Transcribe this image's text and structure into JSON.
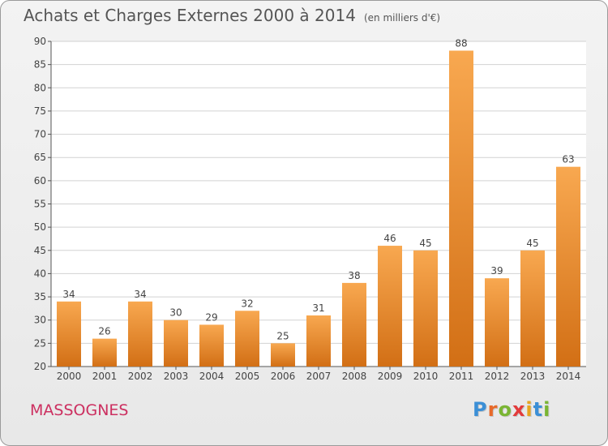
{
  "title": "Achats et Charges Externes 2000 à 2014",
  "subtitle": "(en milliers d'€)",
  "commune": "MASSOGNES",
  "logo": {
    "text": "Proxiti",
    "letters": [
      {
        "ch": "P",
        "color": "#3b8fd6"
      },
      {
        "ch": "r",
        "color": "#e86a2a"
      },
      {
        "ch": "o",
        "color": "#7ab533"
      },
      {
        "ch": "x",
        "color": "#e23b3b"
      },
      {
        "ch": "i",
        "color": "#e8a51e"
      },
      {
        "ch": "t",
        "color": "#3b8fd6"
      },
      {
        "ch": "i",
        "color": "#7ab533"
      }
    ]
  },
  "colors": {
    "bar_top": "#f8a850",
    "bar_bottom": "#d26f15",
    "grid": "#d2d2d2",
    "axis": "#555555",
    "text": "#444444"
  },
  "chart_data": {
    "type": "bar",
    "categories": [
      "2000",
      "2001",
      "2002",
      "2003",
      "2004",
      "2005",
      "2006",
      "2007",
      "2008",
      "2009",
      "2010",
      "2011",
      "2012",
      "2013",
      "2014"
    ],
    "values": [
      34,
      26,
      34,
      30,
      29,
      32,
      25,
      31,
      38,
      46,
      45,
      88,
      39,
      45,
      63
    ],
    "title": "Achats et Charges Externes 2000 à 2014",
    "xlabel": "",
    "ylabel": "",
    "ylim": [
      20,
      90
    ],
    "yticks": [
      20,
      25,
      30,
      35,
      40,
      45,
      50,
      55,
      60,
      65,
      70,
      75,
      80,
      85,
      90
    ],
    "grid": true,
    "data_labels": true
  }
}
